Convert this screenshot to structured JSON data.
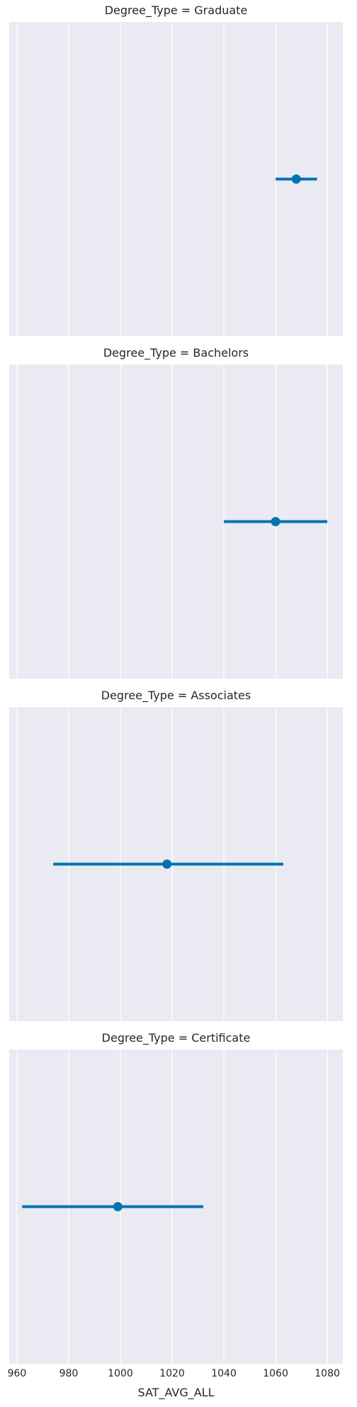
{
  "chart_data": {
    "type": "point",
    "xlabel": "SAT_AVG_ALL",
    "xlim": [
      957,
      1086
    ],
    "x_ticks": [
      960,
      980,
      1000,
      1020,
      1040,
      1060,
      1080
    ],
    "x_tick_labels": [
      "960",
      "980",
      "1000",
      "1020",
      "1040",
      "1060",
      "1080"
    ],
    "grid": true,
    "colors": {
      "background": "#eaeaf2",
      "grid": "#ffffff",
      "series": "#0173b2"
    },
    "panels": [
      {
        "title": "Degree_Type = Graduate",
        "mean": 1068,
        "ci": [
          1060,
          1076
        ]
      },
      {
        "title": "Degree_Type = Bachelors",
        "mean": 1060,
        "ci": [
          1040,
          1080
        ]
      },
      {
        "title": "Degree_Type = Associates",
        "mean": 1018,
        "ci": [
          974,
          1063
        ]
      },
      {
        "title": "Degree_Type = Certificate",
        "mean": 999,
        "ci": [
          962,
          1032
        ]
      }
    ]
  }
}
